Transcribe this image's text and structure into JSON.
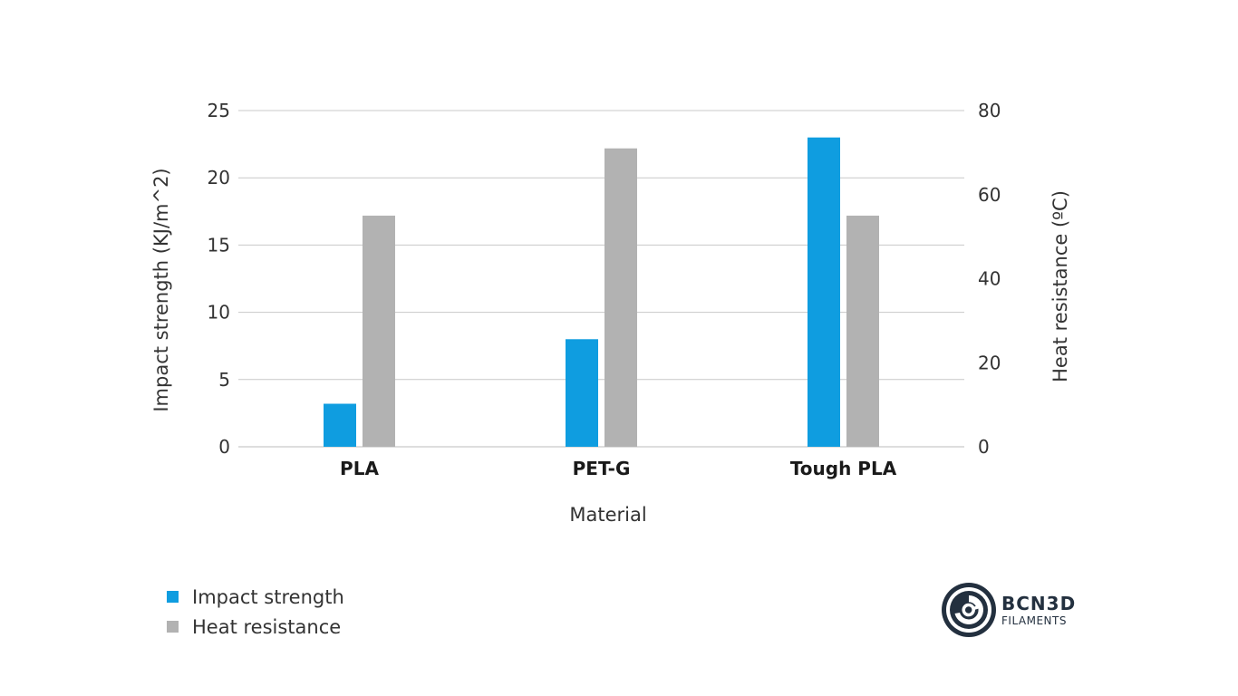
{
  "chart_data": {
    "type": "bar",
    "categories": [
      "PLA",
      "PET-G",
      "Tough PLA"
    ],
    "xlabel": "Material",
    "ylabel": "Impact strength (KJ/m^2)",
    "y2label": "Heat resistance (ºC)",
    "ylim": [
      0,
      25
    ],
    "y2lim": [
      0,
      80
    ],
    "yticks": [
      "0",
      "5",
      "10",
      "15",
      "20",
      "25"
    ],
    "y2ticks": [
      "0",
      "20",
      "40",
      "60",
      "80"
    ],
    "grid": true,
    "legend_position": "bottom-left",
    "series": [
      {
        "name": "Impact strength",
        "axis": "left",
        "color": "#0f9de0",
        "values": [
          3.2,
          8.0,
          23.0
        ]
      },
      {
        "name": "Heat resistance",
        "axis": "right",
        "color": "#b2b2b2",
        "values": [
          55,
          71,
          55
        ]
      }
    ]
  },
  "logo": {
    "brand": "BCN3D",
    "sub": "FILAMENTS",
    "color": "#23303f"
  }
}
